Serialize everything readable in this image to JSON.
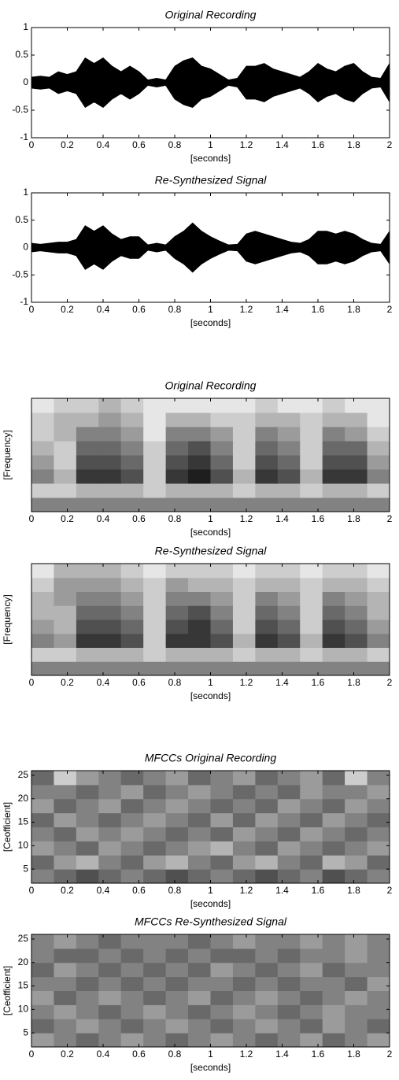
{
  "chart_data": [
    {
      "type": "area",
      "title": "Original Recording",
      "xlabel": "[seconds]",
      "color": "#000000",
      "x": [
        0,
        0.05,
        0.1,
        0.15,
        0.2,
        0.25,
        0.3,
        0.35,
        0.4,
        0.45,
        0.5,
        0.55,
        0.6,
        0.65,
        0.7,
        0.75,
        0.8,
        0.85,
        0.9,
        0.95,
        1,
        1.05,
        1.1,
        1.15,
        1.2,
        1.25,
        1.3,
        1.35,
        1.4,
        1.45,
        1.5,
        1.55,
        1.6,
        1.65,
        1.7,
        1.75,
        1.8,
        1.85,
        1.9,
        1.95,
        2
      ],
      "values": [
        0.1,
        0.12,
        0.1,
        0.2,
        0.15,
        0.2,
        0.45,
        0.35,
        0.45,
        0.3,
        0.2,
        0.3,
        0.2,
        0.05,
        0.08,
        0.05,
        0.3,
        0.4,
        0.45,
        0.3,
        0.25,
        0.15,
        0.05,
        0.08,
        0.3,
        0.3,
        0.35,
        0.25,
        0.2,
        0.15,
        0.1,
        0.2,
        0.35,
        0.25,
        0.2,
        0.3,
        0.35,
        0.2,
        0.1,
        0.08,
        0.35
      ],
      "xlim": [
        0,
        2
      ],
      "xticks": [
        0,
        0.2,
        0.4,
        0.6,
        0.8,
        1,
        1.2,
        1.4,
        1.6,
        1.8,
        2
      ],
      "ylim": [
        -1,
        1
      ],
      "yticks": [
        -1,
        -0.5,
        0,
        0.5,
        1
      ]
    },
    {
      "type": "area",
      "title": "Re-Synthesized Signal",
      "xlabel": "[seconds]",
      "color": "#000000",
      "x": [
        0,
        0.05,
        0.1,
        0.15,
        0.2,
        0.25,
        0.3,
        0.35,
        0.4,
        0.45,
        0.5,
        0.55,
        0.6,
        0.65,
        0.7,
        0.75,
        0.8,
        0.85,
        0.9,
        0.95,
        1,
        1.05,
        1.1,
        1.15,
        1.2,
        1.25,
        1.3,
        1.35,
        1.4,
        1.45,
        1.5,
        1.55,
        1.6,
        1.65,
        1.7,
        1.75,
        1.8,
        1.85,
        1.9,
        1.95,
        2
      ],
      "values": [
        0.08,
        0.06,
        0.08,
        0.1,
        0.1,
        0.15,
        0.4,
        0.3,
        0.4,
        0.25,
        0.15,
        0.2,
        0.2,
        0.05,
        0.08,
        0.05,
        0.2,
        0.3,
        0.45,
        0.3,
        0.2,
        0.12,
        0.05,
        0.06,
        0.25,
        0.3,
        0.25,
        0.2,
        0.15,
        0.1,
        0.08,
        0.15,
        0.3,
        0.3,
        0.25,
        0.3,
        0.25,
        0.15,
        0.08,
        0.06,
        0.3
      ],
      "xlim": [
        0,
        2
      ],
      "xticks": [
        0,
        0.2,
        0.4,
        0.6,
        0.8,
        1,
        1.2,
        1.4,
        1.6,
        1.8,
        2
      ],
      "ylim": [
        -1,
        1
      ],
      "yticks": [
        -1,
        -0.5,
        0,
        0.5,
        1
      ]
    },
    {
      "type": "heatmap",
      "title": "Original Recording",
      "xlabel": "[seconds]",
      "ylabel": "[Frequency]",
      "xlim": [
        0,
        2
      ],
      "xticks": [
        0,
        0.2,
        0.4,
        0.6,
        0.8,
        1,
        1.2,
        1.4,
        1.6,
        1.8,
        2
      ],
      "z": [
        [
          5,
          5,
          5,
          5,
          5,
          5,
          5,
          5,
          5,
          5,
          5,
          5,
          5,
          5,
          5,
          5
        ],
        [
          2,
          2,
          3,
          3,
          3,
          2,
          3,
          3,
          3,
          2,
          3,
          3,
          2,
          3,
          3,
          2
        ],
        [
          5,
          3,
          8,
          8,
          7,
          2,
          8,
          9,
          7,
          3,
          8,
          7,
          3,
          8,
          8,
          5
        ],
        [
          4,
          2,
          7,
          7,
          6,
          2,
          7,
          8,
          6,
          2,
          7,
          6,
          2,
          7,
          7,
          4
        ],
        [
          3,
          2,
          6,
          6,
          5,
          2,
          6,
          7,
          5,
          2,
          6,
          5,
          2,
          6,
          6,
          3
        ],
        [
          2,
          3,
          5,
          5,
          4,
          1,
          5,
          5,
          4,
          2,
          5,
          4,
          2,
          5,
          4,
          2
        ],
        [
          2,
          3,
          3,
          4,
          3,
          1,
          3,
          3,
          2,
          2,
          3,
          3,
          2,
          3,
          3,
          1
        ],
        [
          1,
          2,
          2,
          3,
          2,
          1,
          1,
          1,
          1,
          1,
          2,
          1,
          1,
          2,
          1,
          1
        ]
      ]
    },
    {
      "type": "heatmap",
      "title": "Re-Synthesized Signal",
      "xlabel": "[seconds]",
      "ylabel": "[Frequency]",
      "xlim": [
        0,
        2
      ],
      "xticks": [
        0,
        0.2,
        0.4,
        0.6,
        0.8,
        1,
        1.2,
        1.4,
        1.6,
        1.8,
        2
      ],
      "z": [
        [
          5,
          5,
          5,
          5,
          5,
          5,
          5,
          5,
          5,
          5,
          5,
          5,
          5,
          5,
          5,
          5
        ],
        [
          2,
          2,
          3,
          3,
          3,
          2,
          3,
          3,
          3,
          2,
          3,
          3,
          2,
          3,
          3,
          2
        ],
        [
          5,
          4,
          8,
          8,
          7,
          2,
          8,
          8,
          7,
          3,
          8,
          7,
          3,
          8,
          7,
          5
        ],
        [
          4,
          3,
          7,
          7,
          6,
          2,
          7,
          8,
          6,
          2,
          7,
          6,
          2,
          7,
          6,
          4
        ],
        [
          3,
          3,
          6,
          6,
          5,
          2,
          6,
          7,
          5,
          2,
          6,
          5,
          2,
          6,
          5,
          3
        ],
        [
          3,
          4,
          5,
          5,
          4,
          2,
          5,
          5,
          4,
          2,
          5,
          4,
          2,
          5,
          4,
          3
        ],
        [
          2,
          4,
          4,
          4,
          3,
          2,
          4,
          3,
          3,
          2,
          3,
          3,
          2,
          3,
          3,
          2
        ],
        [
          1,
          3,
          3,
          3,
          2,
          1,
          2,
          2,
          2,
          1,
          2,
          2,
          1,
          2,
          2,
          1
        ]
      ]
    },
    {
      "type": "heatmap",
      "title": "MFCCs Original Recording",
      "xlabel": "[seconds]",
      "ylabel": "[Ceofficient]",
      "xlim": [
        0,
        2
      ],
      "xticks": [
        0,
        0.2,
        0.4,
        0.6,
        0.8,
        1,
        1.2,
        1.4,
        1.6,
        1.8,
        2
      ],
      "ylim": [
        2,
        26
      ],
      "yticks": [
        5,
        10,
        15,
        20,
        25
      ],
      "z": [
        [
          5,
          6,
          7,
          6,
          5,
          6,
          7,
          6,
          5,
          6,
          7,
          6,
          5,
          7,
          6,
          5
        ],
        [
          6,
          4,
          3,
          5,
          6,
          4,
          3,
          5,
          6,
          4,
          3,
          5,
          6,
          3,
          4,
          6
        ],
        [
          4,
          5,
          6,
          4,
          5,
          6,
          5,
          4,
          3,
          5,
          6,
          4,
          5,
          6,
          5,
          4
        ],
        [
          5,
          6,
          4,
          5,
          4,
          5,
          6,
          5,
          6,
          4,
          5,
          6,
          4,
          5,
          6,
          5
        ],
        [
          6,
          4,
          5,
          6,
          5,
          4,
          5,
          6,
          4,
          6,
          4,
          5,
          6,
          4,
          5,
          6
        ],
        [
          4,
          6,
          5,
          4,
          6,
          5,
          4,
          5,
          6,
          5,
          6,
          4,
          5,
          6,
          4,
          5
        ],
        [
          5,
          5,
          6,
          5,
          4,
          6,
          5,
          4,
          5,
          6,
          5,
          6,
          4,
          5,
          5,
          4
        ],
        [
          6,
          2,
          4,
          5,
          6,
          5,
          4,
          6,
          5,
          4,
          6,
          5,
          4,
          6,
          2,
          5
        ]
      ]
    },
    {
      "type": "heatmap",
      "title": "MFCCs Re-Synthesized Signal",
      "xlabel": "[seconds]",
      "ylabel": "[Ceofficient]",
      "xlim": [
        0,
        2
      ],
      "xticks": [
        0,
        0.2,
        0.4,
        0.6,
        0.8,
        1,
        1.2,
        1.4,
        1.6,
        1.8,
        2
      ],
      "ylim": [
        2,
        26
      ],
      "yticks": [
        5,
        10,
        15,
        20,
        25
      ],
      "z": [
        [
          4,
          5,
          6,
          5,
          4,
          5,
          6,
          5,
          4,
          5,
          6,
          5,
          4,
          6,
          5,
          4
        ],
        [
          6,
          5,
          4,
          5,
          6,
          5,
          4,
          5,
          6,
          5,
          4,
          5,
          6,
          4,
          5,
          6
        ],
        [
          5,
          4,
          5,
          6,
          5,
          4,
          5,
          6,
          5,
          4,
          5,
          6,
          5,
          4,
          5,
          5
        ],
        [
          4,
          6,
          5,
          4,
          5,
          6,
          5,
          4,
          6,
          5,
          4,
          5,
          6,
          5,
          4,
          5
        ],
        [
          5,
          5,
          6,
          5,
          6,
          5,
          6,
          5,
          5,
          6,
          5,
          6,
          5,
          5,
          6,
          4
        ],
        [
          6,
          4,
          5,
          6,
          5,
          6,
          5,
          6,
          4,
          5,
          6,
          5,
          4,
          6,
          5,
          5
        ],
        [
          5,
          6,
          6,
          5,
          6,
          5,
          6,
          5,
          6,
          6,
          5,
          6,
          5,
          5,
          4,
          5
        ],
        [
          5,
          4,
          5,
          6,
          5,
          5,
          5,
          6,
          5,
          4,
          5,
          5,
          4,
          5,
          4,
          5
        ]
      ]
    }
  ]
}
